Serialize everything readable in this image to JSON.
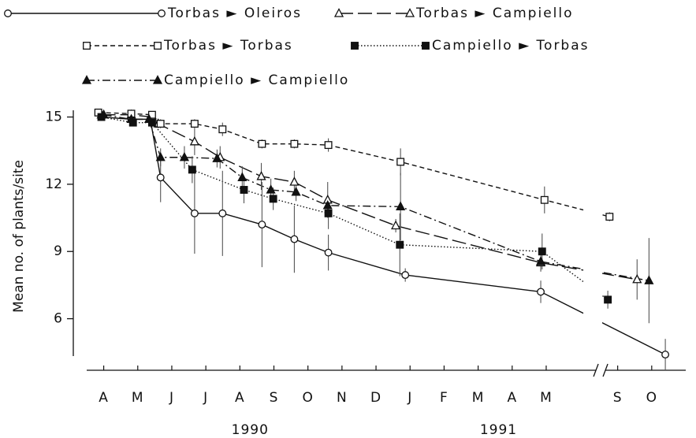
{
  "chart_data": {
    "type": "line",
    "y_label": "Mean no. of plants/site",
    "xlim": [
      -0.5,
      19
    ],
    "x_break": true,
    "xticks": [
      {
        "value": 0,
        "label": "A"
      },
      {
        "value": 1,
        "label": "M"
      },
      {
        "value": 2,
        "label": "J"
      },
      {
        "value": 3,
        "label": "J"
      },
      {
        "value": 4,
        "label": "A"
      },
      {
        "value": 5,
        "label": "S"
      },
      {
        "value": 6,
        "label": "O"
      },
      {
        "value": 7,
        "label": "N"
      },
      {
        "value": 8,
        "label": "D"
      },
      {
        "value": 9,
        "label": "J"
      },
      {
        "value": 10,
        "label": "F"
      },
      {
        "value": 11,
        "label": "M"
      },
      {
        "value": 12,
        "label": "A"
      },
      {
        "value": 13,
        "label": "M"
      },
      {
        "value": 17,
        "label": "S"
      },
      {
        "value": 18,
        "label": "O"
      }
    ],
    "year_labels": [
      "1990",
      "1991"
    ],
    "ylim": [
      3.7,
      15.3
    ],
    "yticks": [
      6,
      9,
      12,
      15
    ],
    "series": [
      {
        "name": "Torbas ► Oleiros",
        "color": "#111111",
        "marker": "circle-open",
        "dash": "solid",
        "x": [
          -0.07,
          0.81,
          1.37,
          1.67,
          2.67,
          3.49,
          4.65,
          5.6,
          6.6,
          8.86,
          12.84,
          18.4
        ],
        "values": [
          15.0,
          14.9,
          14.9,
          12.3,
          10.7,
          10.7,
          10.2,
          9.55,
          8.95,
          7.95,
          7.2,
          4.4
        ],
        "errors": [
          0,
          0.1,
          0.1,
          1.1,
          1.8,
          1.9,
          1.9,
          1.5,
          0.8,
          0.3,
          0.5,
          0.7
        ]
      },
      {
        "name": "Torbas ► Campiello",
        "color": "#111111",
        "marker": "triangle-open",
        "dash": "long-dash",
        "x": [
          -0.07,
          0.81,
          1.42,
          1.6,
          2.67,
          3.42,
          4.63,
          5.6,
          6.58,
          8.58,
          12.84,
          17.57
        ],
        "values": [
          15.1,
          15.1,
          15.0,
          14.7,
          13.9,
          13.2,
          12.35,
          12.1,
          11.3,
          10.15,
          8.5,
          7.75
        ],
        "errors": [
          0,
          0,
          0,
          0.2,
          0.6,
          0.5,
          0.6,
          0.5,
          0.8,
          0.3,
          0.4,
          0.9
        ]
      },
      {
        "name": "Torbas ► Torbas",
        "color": "#111111",
        "marker": "square-open",
        "dash": "dashed",
        "x": [
          -0.16,
          0.81,
          1.42,
          1.67,
          2.67,
          3.49,
          4.65,
          5.6,
          6.6,
          8.72,
          12.95,
          16.76
        ],
        "values": [
          15.2,
          15.15,
          15.1,
          14.7,
          14.7,
          14.45,
          13.8,
          13.8,
          13.75,
          13.0,
          11.3,
          10.55
        ],
        "errors": [
          0,
          0,
          0,
          0.2,
          0.2,
          0.3,
          0.2,
          0.2,
          0.3,
          0.6,
          0.6,
          0.2
        ]
      },
      {
        "name": "Campiello ► Torbas",
        "color": "#111111",
        "marker": "square-filled",
        "dash": "dotted",
        "x": [
          -0.07,
          0.86,
          1.42,
          2.6,
          4.12,
          4.98,
          6.6,
          8.7,
          12.88,
          16.71
        ],
        "values": [
          15.0,
          14.75,
          14.75,
          12.65,
          11.75,
          11.35,
          10.7,
          9.3,
          9.0,
          6.85
        ],
        "errors": [
          0,
          0,
          0,
          0.6,
          0.6,
          0.5,
          0.7,
          1.4,
          0.8,
          0.4
        ]
      },
      {
        "name": "Campiello ► Campiello",
        "color": "#111111",
        "marker": "triangle-filled",
        "dash": "dash-dot",
        "x": [
          0,
          0.81,
          1.33,
          1.67,
          2.37,
          3.33,
          4.07,
          4.91,
          5.65,
          6.58,
          8.72,
          12.84,
          17.92
        ],
        "values": [
          15.1,
          14.9,
          14.9,
          13.2,
          13.2,
          13.15,
          12.3,
          11.75,
          11.65,
          11.05,
          11.0,
          8.55,
          7.7
        ],
        "errors": [
          0,
          0.1,
          0.1,
          0.4,
          0.5,
          0.4,
          0.5,
          0.5,
          0.4,
          0.4,
          1.5,
          0.4,
          1.9
        ]
      }
    ]
  }
}
